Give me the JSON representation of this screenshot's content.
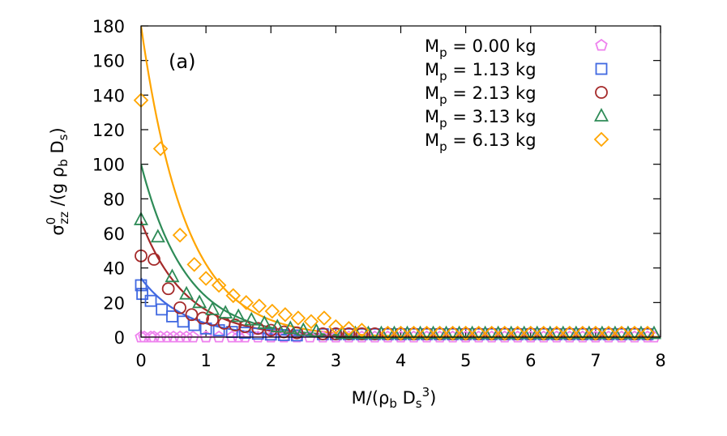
{
  "chart_data": {
    "type": "scatter",
    "title": "",
    "panel_label": "(a)",
    "xlabel_parts": {
      "base": "M/(ρ",
      "sub1": "b",
      "mid": " D",
      "sub2": "s",
      "sup": "3",
      "end": ")"
    },
    "ylabel_parts": {
      "base": "σ",
      "sup": "0",
      "sub": "zz",
      "mid": " /(g ρ",
      "sub2": "b",
      "mid2": " D",
      "sub3": "s",
      "end": ")"
    },
    "xlim": [
      0,
      8
    ],
    "ylim": [
      0,
      180
    ],
    "xticks": [
      0,
      1,
      2,
      3,
      4,
      5,
      6,
      7,
      8
    ],
    "yticks": [
      0,
      20,
      40,
      60,
      80,
      100,
      120,
      140,
      160,
      180
    ],
    "legend_position": "top-right",
    "series": [
      {
        "name": "M_p = 0.00 kg",
        "legend_base": "M",
        "legend_sub": "p",
        "legend_text": " = 0.00 kg",
        "color": "#ee82ee",
        "marker": "pentagon",
        "fit_amplitude": 0,
        "fit_decay": 1.5,
        "x": [
          0.0,
          0.05,
          0.15,
          0.3,
          0.5,
          0.7,
          1.0,
          1.5,
          2.0,
          3.0,
          4.0,
          5.0,
          6.0,
          7.0,
          7.9
        ],
        "y": [
          0,
          0,
          0,
          0,
          0,
          0,
          0,
          0,
          0,
          0,
          0,
          0,
          0,
          0,
          0
        ]
      },
      {
        "name": "M_p = 1.13 kg",
        "legend_base": "M",
        "legend_sub": "p",
        "legend_text": " = 1.13 kg",
        "color": "#4169e1",
        "marker": "square",
        "fit_amplitude": 34,
        "fit_decay": 1.45,
        "x": [
          0.0,
          0.02,
          0.15,
          0.32,
          0.48,
          0.65,
          0.82,
          1.0,
          1.2,
          1.4,
          1.6,
          1.8,
          2.0,
          2.2,
          2.4
        ],
        "y": [
          30,
          25,
          21,
          16,
          12,
          9,
          7,
          5,
          4,
          3,
          2.5,
          2,
          1.5,
          1.2,
          1
        ]
      },
      {
        "name": "M_p = 2.13 kg",
        "legend_base": "M",
        "legend_sub": "p",
        "legend_text": " = 2.13 kg",
        "color": "#a52a2a",
        "marker": "circle",
        "fit_amplitude": 67,
        "fit_decay": 1.45,
        "x": [
          0.0,
          0.2,
          0.42,
          0.6,
          0.78,
          0.95,
          1.1,
          1.28,
          1.45,
          1.6,
          1.8,
          2.0,
          2.2,
          2.4
        ],
        "y": [
          47,
          45,
          28,
          17,
          13,
          11,
          10,
          8,
          7,
          6,
          5,
          4,
          3,
          2.5
        ]
      },
      {
        "name": "M_p = 3.13 kg",
        "legend_base": "M",
        "legend_sub": "p",
        "legend_text": " = 3.13 kg",
        "color": "#2e8b57",
        "marker": "triangle",
        "fit_amplitude": 100,
        "fit_decay": 1.45,
        "x": [
          0.0,
          0.26,
          0.48,
          0.7,
          0.9,
          1.1,
          1.3,
          1.5,
          1.7,
          1.9,
          2.1,
          2.3,
          2.5,
          2.7
        ],
        "y": [
          68,
          58,
          35,
          25,
          20,
          16,
          14,
          12,
          10,
          8,
          6,
          5,
          4,
          3.5
        ]
      },
      {
        "name": "M_p = 6.13 kg",
        "legend_base": "M",
        "legend_sub": "p",
        "legend_text": " = 6.13 kg",
        "color": "#ffa500",
        "marker": "diamond",
        "fit_amplitude": 180,
        "fit_decay": 1.45,
        "x": [
          0.0,
          0.3,
          0.6,
          0.82,
          1.0,
          1.2,
          1.42,
          1.62,
          1.82,
          2.02,
          2.22,
          2.42,
          2.62,
          2.82,
          3.0,
          3.2,
          3.4
        ],
        "y": [
          137,
          109,
          59,
          42,
          34,
          30,
          24,
          20,
          18,
          15,
          13,
          11,
          9,
          11,
          6,
          5,
          4
        ]
      }
    ]
  }
}
